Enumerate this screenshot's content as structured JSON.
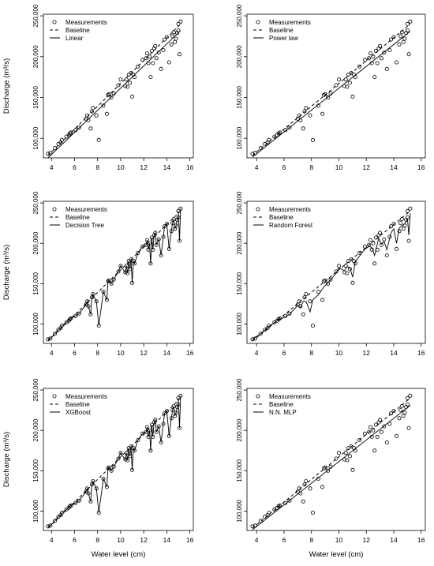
{
  "figure": {
    "xlabel": "Water level (cm)",
    "ylabel": "Discharge (m³/s)",
    "x_ticks": [
      "4",
      "6",
      "8",
      "10",
      "12",
      "14",
      "16"
    ],
    "y_ticks": [
      "100,000",
      "150,000",
      "200,000",
      "250,000"
    ],
    "legend_common": [
      "Measurements",
      "Baseline"
    ]
  },
  "chart_data": [
    {
      "type": "scatter",
      "model": "Linear",
      "legend": [
        "Measurements",
        "Baseline",
        "Linear"
      ],
      "xlabel": "",
      "ylabel": "Discharge (m³/s)",
      "xlim": [
        3.3,
        16.3
      ],
      "ylim": [
        76000,
        252000
      ],
      "grid": false,
      "legend_position": "top-left",
      "measurements": {
        "x": [
          3.7,
          3.9,
          4.3,
          4.6,
          4.8,
          4.9,
          5.3,
          5.5,
          5.6,
          5.7,
          6.1,
          6.4,
          7.0,
          7.1,
          7.2,
          7.4,
          7.5,
          7.6,
          7.9,
          8.1,
          8.5,
          8.8,
          8.9,
          9.0,
          9.2,
          9.4,
          9.8,
          10.0,
          10.4,
          10.5,
          10.6,
          10.7,
          10.8,
          10.9,
          11.0,
          11.1,
          11.2,
          11.5,
          11.9,
          12.2,
          12.3,
          12.4,
          12.5,
          12.6,
          12.7,
          12.8,
          12.9,
          13.0,
          13.1,
          13.3,
          13.5,
          13.7,
          13.8,
          14.0,
          14.2,
          14.4,
          14.5,
          14.6,
          14.7,
          14.8,
          14.9,
          15.0,
          15.0,
          15.1,
          15.2
        ],
        "y": [
          81000,
          82000,
          88000,
          93000,
          95000,
          98000,
          102000,
          104000,
          106000,
          107000,
          110000,
          113000,
          124000,
          128000,
          122000,
          112000,
          133000,
          137000,
          128000,
          98000,
          140000,
          130000,
          153000,
          154000,
          150000,
          155000,
          165000,
          172000,
          164000,
          172000,
          163000,
          178000,
          168000,
          180000,
          151000,
          178000,
          175000,
          188000,
          196000,
          198000,
          204000,
          192000,
          200000,
          175000,
          207000,
          192000,
          210000,
          213000,
          198000,
          205000,
          185000,
          208000,
          221000,
          224000,
          193000,
          215000,
          225000,
          230000,
          218000,
          222000,
          229000,
          232000,
          240000,
          203000,
          243000
        ]
      },
      "baseline": {
        "x": [
          3.7,
          15.2
        ],
        "y": [
          79000,
          240000
        ]
      },
      "model_line": {
        "x": [
          3.7,
          15.2
        ],
        "y": [
          76000,
          232000
        ]
      }
    },
    {
      "type": "scatter",
      "model": "Power law",
      "legend": [
        "Measurements",
        "Baseline",
        "Power law"
      ],
      "xlabel": "",
      "ylabel": "",
      "xlim": [
        3.3,
        16.3
      ],
      "ylim": [
        76000,
        252000
      ],
      "grid": false,
      "legend_position": "top-left",
      "measurements": {
        "x": [
          3.7,
          3.9,
          4.3,
          4.6,
          4.8,
          4.9,
          5.3,
          5.5,
          5.6,
          5.7,
          6.1,
          6.4,
          7.0,
          7.1,
          7.2,
          7.4,
          7.5,
          7.6,
          7.9,
          8.1,
          8.5,
          8.8,
          8.9,
          9.0,
          9.2,
          9.4,
          9.8,
          10.0,
          10.4,
          10.5,
          10.6,
          10.7,
          10.8,
          10.9,
          11.0,
          11.1,
          11.2,
          11.5,
          11.9,
          12.2,
          12.3,
          12.4,
          12.5,
          12.6,
          12.7,
          12.8,
          12.9,
          13.0,
          13.1,
          13.3,
          13.5,
          13.7,
          13.8,
          14.0,
          14.2,
          14.4,
          14.5,
          14.6,
          14.7,
          14.8,
          14.9,
          15.0,
          15.0,
          15.1,
          15.2
        ],
        "y": [
          81000,
          82000,
          88000,
          93000,
          95000,
          98000,
          102000,
          104000,
          106000,
          107000,
          110000,
          113000,
          124000,
          128000,
          122000,
          112000,
          133000,
          137000,
          128000,
          98000,
          140000,
          130000,
          153000,
          154000,
          150000,
          155000,
          165000,
          172000,
          164000,
          172000,
          163000,
          178000,
          168000,
          180000,
          151000,
          178000,
          175000,
          188000,
          196000,
          198000,
          204000,
          192000,
          200000,
          175000,
          207000,
          192000,
          210000,
          213000,
          198000,
          205000,
          185000,
          208000,
          221000,
          224000,
          193000,
          215000,
          225000,
          230000,
          218000,
          222000,
          229000,
          232000,
          240000,
          203000,
          243000
        ]
      },
      "baseline": {
        "x": [
          3.7,
          15.2
        ],
        "y": [
          79000,
          240000
        ]
      },
      "model_line": {
        "x": [
          3.7,
          15.2
        ],
        "y": [
          77000,
          231000
        ]
      }
    },
    {
      "type": "line",
      "model": "Decision Tree",
      "legend": [
        "Measurements",
        "Baseline",
        "Decision Tree"
      ],
      "xlabel": "",
      "ylabel": "Discharge (m³/s)",
      "xlim": [
        3.3,
        16.3
      ],
      "ylim": [
        76000,
        252000
      ],
      "grid": false,
      "legend_position": "top-left",
      "measurements": {
        "x": [
          3.7,
          3.9,
          4.3,
          4.6,
          4.8,
          4.9,
          5.3,
          5.5,
          5.6,
          5.7,
          6.1,
          6.4,
          7.0,
          7.1,
          7.2,
          7.4,
          7.5,
          7.6,
          7.9,
          8.1,
          8.5,
          8.8,
          8.9,
          9.0,
          9.2,
          9.4,
          9.8,
          10.0,
          10.4,
          10.5,
          10.6,
          10.7,
          10.8,
          10.9,
          11.0,
          11.1,
          11.2,
          11.5,
          11.9,
          12.2,
          12.3,
          12.4,
          12.5,
          12.6,
          12.7,
          12.8,
          12.9,
          13.0,
          13.1,
          13.3,
          13.5,
          13.7,
          13.8,
          14.0,
          14.2,
          14.4,
          14.5,
          14.6,
          14.7,
          14.8,
          14.9,
          15.0,
          15.0,
          15.1,
          15.2
        ],
        "y": [
          81000,
          82000,
          88000,
          93000,
          95000,
          98000,
          102000,
          104000,
          106000,
          107000,
          110000,
          113000,
          124000,
          128000,
          122000,
          112000,
          133000,
          137000,
          128000,
          98000,
          140000,
          130000,
          153000,
          154000,
          150000,
          155000,
          165000,
          172000,
          164000,
          172000,
          163000,
          178000,
          168000,
          180000,
          151000,
          178000,
          175000,
          188000,
          196000,
          198000,
          204000,
          192000,
          200000,
          175000,
          207000,
          192000,
          210000,
          213000,
          198000,
          205000,
          185000,
          208000,
          221000,
          224000,
          193000,
          215000,
          225000,
          230000,
          218000,
          222000,
          229000,
          232000,
          240000,
          203000,
          243000
        ]
      },
      "baseline": {
        "x": [
          3.7,
          15.2
        ],
        "y": [
          79000,
          240000
        ]
      },
      "model_line": {
        "follows": "measurements"
      }
    },
    {
      "type": "line",
      "model": "Random Forest",
      "legend": [
        "Measurements",
        "Baseline",
        "Random Forest"
      ],
      "xlabel": "",
      "ylabel": "",
      "xlim": [
        3.3,
        16.3
      ],
      "ylim": [
        76000,
        252000
      ],
      "grid": false,
      "legend_position": "top-left",
      "measurements": {
        "x": [
          3.7,
          3.9,
          4.3,
          4.6,
          4.8,
          4.9,
          5.3,
          5.5,
          5.6,
          5.7,
          6.1,
          6.4,
          7.0,
          7.1,
          7.2,
          7.4,
          7.5,
          7.6,
          7.9,
          8.1,
          8.5,
          8.8,
          8.9,
          9.0,
          9.2,
          9.4,
          9.8,
          10.0,
          10.4,
          10.5,
          10.6,
          10.7,
          10.8,
          10.9,
          11.0,
          11.1,
          11.2,
          11.5,
          11.9,
          12.2,
          12.3,
          12.4,
          12.5,
          12.6,
          12.7,
          12.8,
          12.9,
          13.0,
          13.1,
          13.3,
          13.5,
          13.7,
          13.8,
          14.0,
          14.2,
          14.4,
          14.5,
          14.6,
          14.7,
          14.8,
          14.9,
          15.0,
          15.0,
          15.1,
          15.2
        ],
        "y": [
          81000,
          82000,
          88000,
          93000,
          95000,
          98000,
          102000,
          104000,
          106000,
          107000,
          110000,
          113000,
          124000,
          128000,
          122000,
          112000,
          133000,
          137000,
          128000,
          98000,
          140000,
          130000,
          153000,
          154000,
          150000,
          155000,
          165000,
          172000,
          164000,
          172000,
          163000,
          178000,
          168000,
          180000,
          151000,
          178000,
          175000,
          188000,
          196000,
          198000,
          204000,
          192000,
          200000,
          175000,
          207000,
          192000,
          210000,
          213000,
          198000,
          205000,
          185000,
          208000,
          221000,
          224000,
          193000,
          215000,
          225000,
          230000,
          218000,
          222000,
          229000,
          232000,
          240000,
          203000,
          243000
        ]
      },
      "baseline": {
        "x": [
          3.7,
          15.2
        ],
        "y": [
          79000,
          240000
        ]
      },
      "model_line": {
        "x": [
          3.7,
          4.3,
          4.9,
          5.5,
          6.1,
          6.4,
          7.0,
          7.2,
          7.4,
          7.6,
          7.9,
          8.1,
          8.5,
          8.9,
          9.2,
          9.8,
          10.0,
          10.4,
          10.6,
          10.8,
          11.0,
          11.2,
          11.5,
          11.9,
          12.2,
          12.4,
          12.6,
          12.9,
          13.1,
          13.3,
          13.5,
          13.8,
          14.0,
          14.2,
          14.4,
          14.6,
          14.8,
          15.0,
          15.1,
          15.2
        ],
        "y": [
          81000,
          88000,
          97000,
          104000,
          109000,
          112000,
          123000,
          120000,
          128000,
          128000,
          115000,
          130000,
          136000,
          146000,
          151000,
          163000,
          170000,
          166000,
          171000,
          170000,
          158000,
          177000,
          184000,
          193000,
          196000,
          195000,
          185000,
          206000,
          199000,
          202000,
          192000,
          213000,
          218000,
          200000,
          219000,
          222000,
          224000,
          230000,
          210000,
          237000
        ]
      }
    },
    {
      "type": "line",
      "model": "XGBoost",
      "legend": [
        "Measurements",
        "Baseline",
        "XGBoost"
      ],
      "xlabel": "Water level (cm)",
      "ylabel": "Discharge (m³/s)",
      "xlim": [
        3.3,
        16.3
      ],
      "ylim": [
        76000,
        252000
      ],
      "grid": false,
      "legend_position": "top-left",
      "measurements": {
        "x": [
          3.7,
          3.9,
          4.3,
          4.6,
          4.8,
          4.9,
          5.3,
          5.5,
          5.6,
          5.7,
          6.1,
          6.4,
          7.0,
          7.1,
          7.2,
          7.4,
          7.5,
          7.6,
          7.9,
          8.1,
          8.5,
          8.8,
          8.9,
          9.0,
          9.2,
          9.4,
          9.8,
          10.0,
          10.4,
          10.5,
          10.6,
          10.7,
          10.8,
          10.9,
          11.0,
          11.1,
          11.2,
          11.5,
          11.9,
          12.2,
          12.3,
          12.4,
          12.5,
          12.6,
          12.7,
          12.8,
          12.9,
          13.0,
          13.1,
          13.3,
          13.5,
          13.7,
          13.8,
          14.0,
          14.2,
          14.4,
          14.5,
          14.6,
          14.7,
          14.8,
          14.9,
          15.0,
          15.0,
          15.1,
          15.2
        ],
        "y": [
          81000,
          82000,
          88000,
          93000,
          95000,
          98000,
          102000,
          104000,
          106000,
          107000,
          110000,
          113000,
          124000,
          128000,
          122000,
          112000,
          133000,
          137000,
          128000,
          98000,
          140000,
          130000,
          153000,
          154000,
          150000,
          155000,
          165000,
          172000,
          164000,
          172000,
          163000,
          178000,
          168000,
          180000,
          151000,
          178000,
          175000,
          188000,
          196000,
          198000,
          204000,
          192000,
          200000,
          175000,
          207000,
          192000,
          210000,
          213000,
          198000,
          205000,
          185000,
          208000,
          221000,
          224000,
          193000,
          215000,
          225000,
          230000,
          218000,
          222000,
          229000,
          232000,
          240000,
          203000,
          243000
        ]
      },
      "baseline": {
        "x": [
          3.7,
          15.2
        ],
        "y": [
          79000,
          240000
        ]
      },
      "model_line": {
        "follows": "measurements"
      }
    },
    {
      "type": "scatter",
      "model": "N.N. MLP",
      "legend": [
        "Measurements",
        "Baseline",
        "N.N. MLP"
      ],
      "xlabel": "Water level (cm)",
      "ylabel": "",
      "xlim": [
        3.3,
        16.3
      ],
      "ylim": [
        76000,
        252000
      ],
      "grid": false,
      "legend_position": "top-left",
      "measurements": {
        "x": [
          3.7,
          3.9,
          4.3,
          4.6,
          4.8,
          4.9,
          5.3,
          5.5,
          5.6,
          5.7,
          6.1,
          6.4,
          7.0,
          7.1,
          7.2,
          7.4,
          7.5,
          7.6,
          7.9,
          8.1,
          8.5,
          8.8,
          8.9,
          9.0,
          9.2,
          9.4,
          9.8,
          10.0,
          10.4,
          10.5,
          10.6,
          10.7,
          10.8,
          10.9,
          11.0,
          11.1,
          11.2,
          11.5,
          11.9,
          12.2,
          12.3,
          12.4,
          12.5,
          12.6,
          12.7,
          12.8,
          12.9,
          13.0,
          13.1,
          13.3,
          13.5,
          13.7,
          13.8,
          14.0,
          14.2,
          14.4,
          14.5,
          14.6,
          14.7,
          14.8,
          14.9,
          15.0,
          15.0,
          15.1,
          15.2
        ],
        "y": [
          81000,
          82000,
          88000,
          93000,
          95000,
          98000,
          102000,
          104000,
          106000,
          107000,
          110000,
          113000,
          124000,
          128000,
          122000,
          112000,
          133000,
          137000,
          128000,
          98000,
          140000,
          130000,
          153000,
          154000,
          150000,
          155000,
          165000,
          172000,
          164000,
          172000,
          163000,
          178000,
          168000,
          180000,
          151000,
          178000,
          175000,
          188000,
          196000,
          198000,
          204000,
          192000,
          200000,
          175000,
          207000,
          192000,
          210000,
          213000,
          198000,
          205000,
          185000,
          208000,
          221000,
          224000,
          193000,
          215000,
          225000,
          230000,
          218000,
          222000,
          229000,
          232000,
          240000,
          203000,
          243000
        ]
      },
      "baseline": {
        "x": [
          3.7,
          15.2
        ],
        "y": [
          79000,
          240000
        ]
      },
      "model_line": {
        "x": [
          3.7,
          15.2
        ],
        "y": [
          77000,
          231000
        ]
      }
    }
  ]
}
